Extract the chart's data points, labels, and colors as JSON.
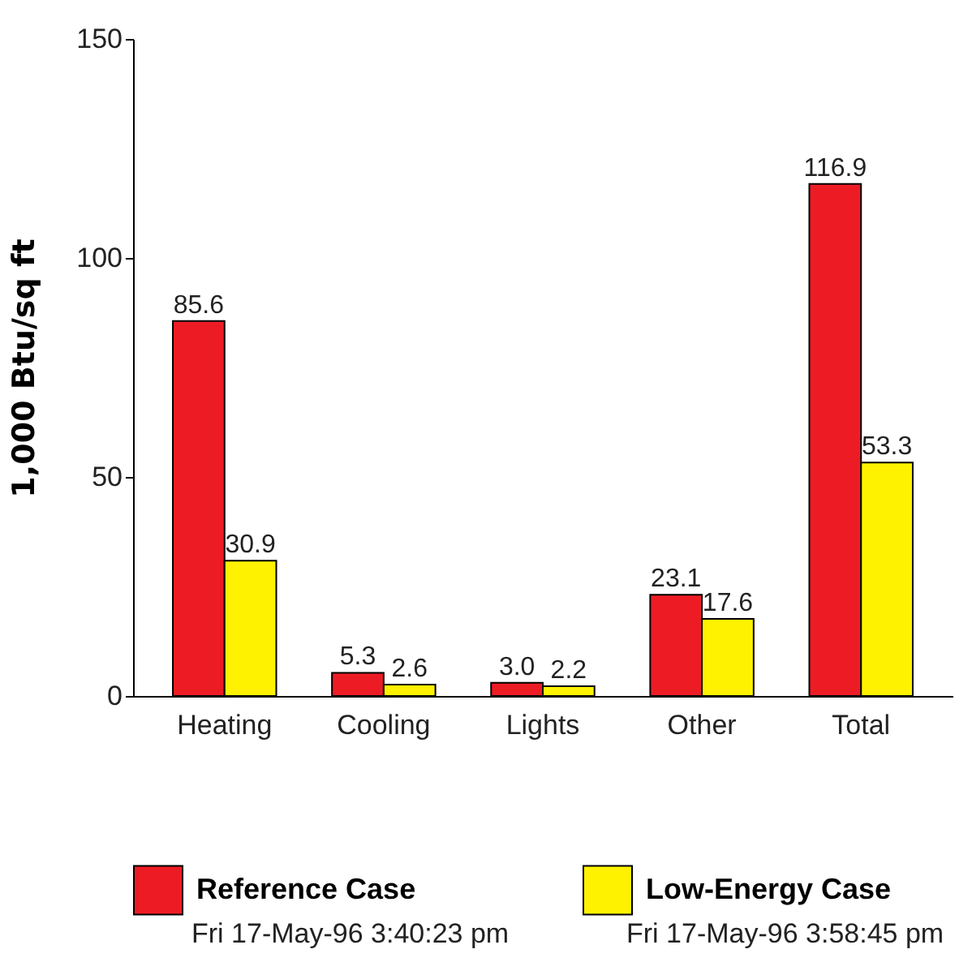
{
  "chart_data": {
    "type": "bar",
    "ylabel": "1,000 Btu/sq ft",
    "categories": [
      "Heating",
      "Cooling",
      "Lights",
      "Other",
      "Total"
    ],
    "series": [
      {
        "name": "Reference Case",
        "color": "#ed1c24",
        "values": [
          85.6,
          5.3,
          3.0,
          23.1,
          116.9
        ],
        "value_labels": [
          "85.6",
          "5.3",
          "3.0",
          "23.1",
          "116.9"
        ]
      },
      {
        "name": "Low-Energy Case",
        "color": "#fff200",
        "values": [
          30.9,
          2.6,
          2.2,
          17.6,
          53.3
        ],
        "value_labels": [
          "30.9",
          "2.6",
          "2.2",
          "17.6",
          "53.3"
        ]
      }
    ],
    "ylim": [
      0,
      150
    ],
    "yticks": [
      0,
      50,
      100,
      150
    ],
    "legend": "bottom",
    "grid": false,
    "annotations": [
      "Fri 17-May-96 3:40:23 pm",
      "Fri 17-May-96 3:58:45 pm"
    ]
  }
}
